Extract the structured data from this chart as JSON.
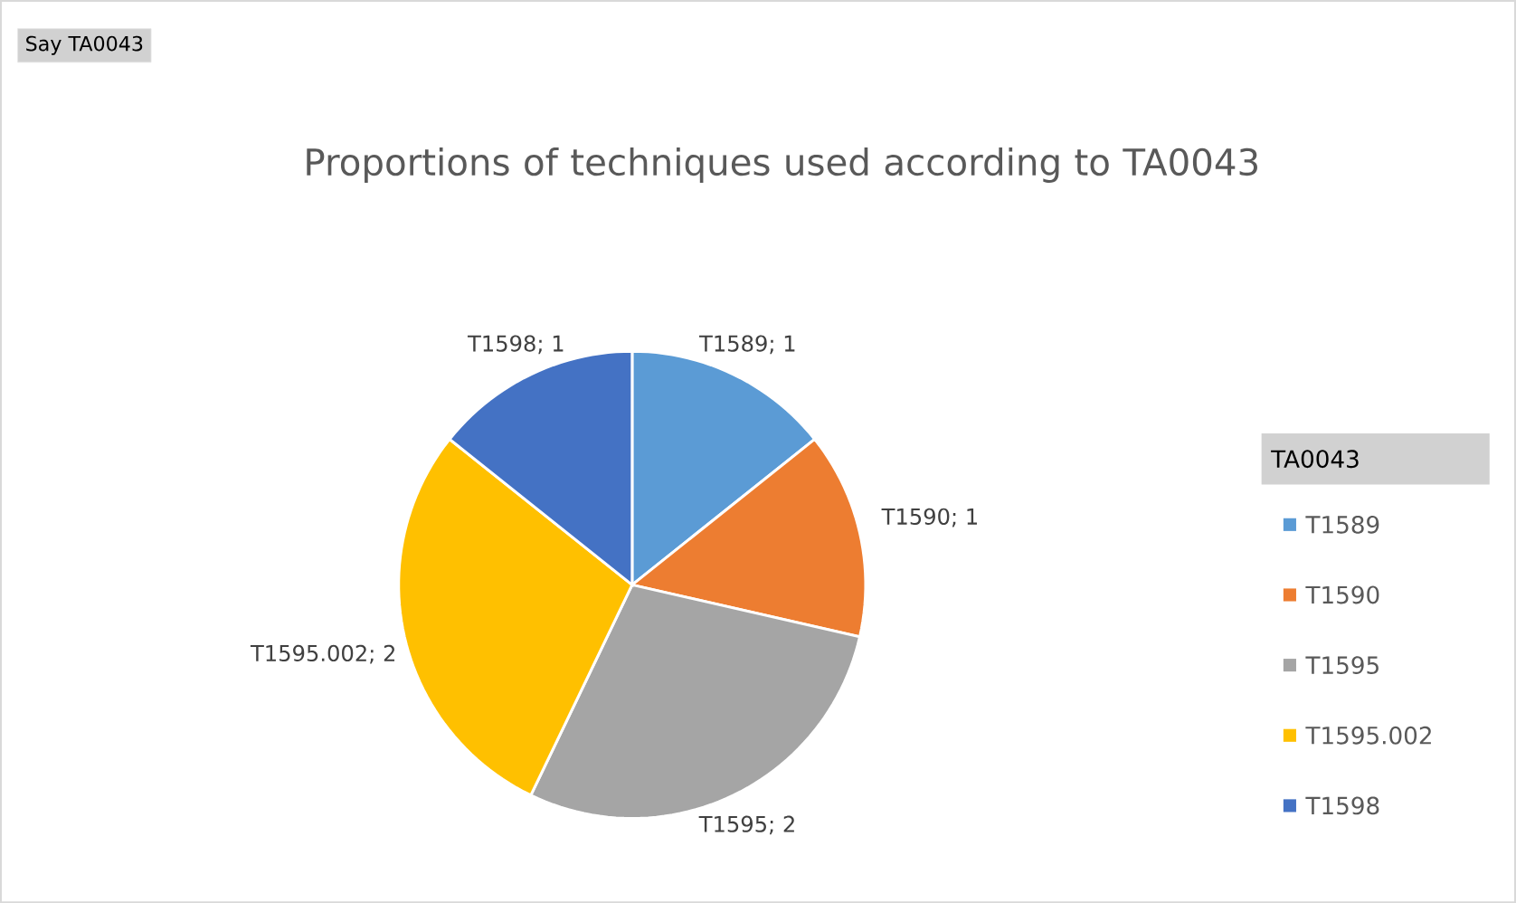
{
  "chart_data": {
    "type": "pie",
    "title": "Proportions of techniques used according to TA0043",
    "categories": [
      "T1589",
      "T1590",
      "T1595",
      "T1595.002",
      "T1598"
    ],
    "values": [
      1,
      1,
      2,
      2,
      1
    ],
    "colors": [
      "#5b9bd5",
      "#ed7d31",
      "#a5a5a5",
      "#ffc000",
      "#4472c4"
    ],
    "value_labels": [
      "T1589; 1",
      "T1590; 1",
      "T1595; 2",
      "T1595.002; 2",
      "T1598; 1"
    ],
    "legend": "right",
    "legend_title": "TA0043",
    "annotations": [
      "Say TA0043"
    ]
  }
}
